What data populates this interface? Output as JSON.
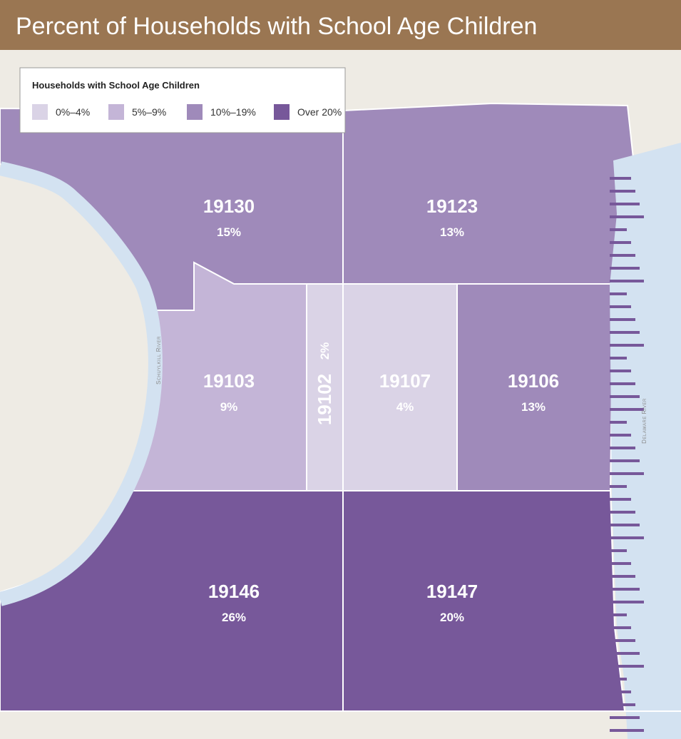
{
  "title": "Percent of Households with School Age Children",
  "legend": {
    "title": "Households with School Age Children",
    "items": [
      {
        "label": "0%–4%",
        "color": "#dad3e6"
      },
      {
        "label": "5%–9%",
        "color": "#c4b5d7"
      },
      {
        "label": "10%–19%",
        "color": "#9f8aba"
      },
      {
        "label": "Over 20%",
        "color": "#77589a"
      }
    ]
  },
  "regions": [
    {
      "zip": "19130",
      "percent": "15%",
      "class": 2
    },
    {
      "zip": "19123",
      "percent": "13%",
      "class": 2
    },
    {
      "zip": "19103",
      "percent": "9%",
      "class": 1
    },
    {
      "zip": "19102",
      "percent": "2%",
      "class": 0
    },
    {
      "zip": "19107",
      "percent": "4%",
      "class": 0
    },
    {
      "zip": "19106",
      "percent": "13%",
      "class": 2
    },
    {
      "zip": "19146",
      "percent": "26%",
      "class": 3
    },
    {
      "zip": "19147",
      "percent": "20%",
      "class": 3
    }
  ],
  "rivers": [
    "Schuylkill River",
    "Delaware River"
  ]
}
